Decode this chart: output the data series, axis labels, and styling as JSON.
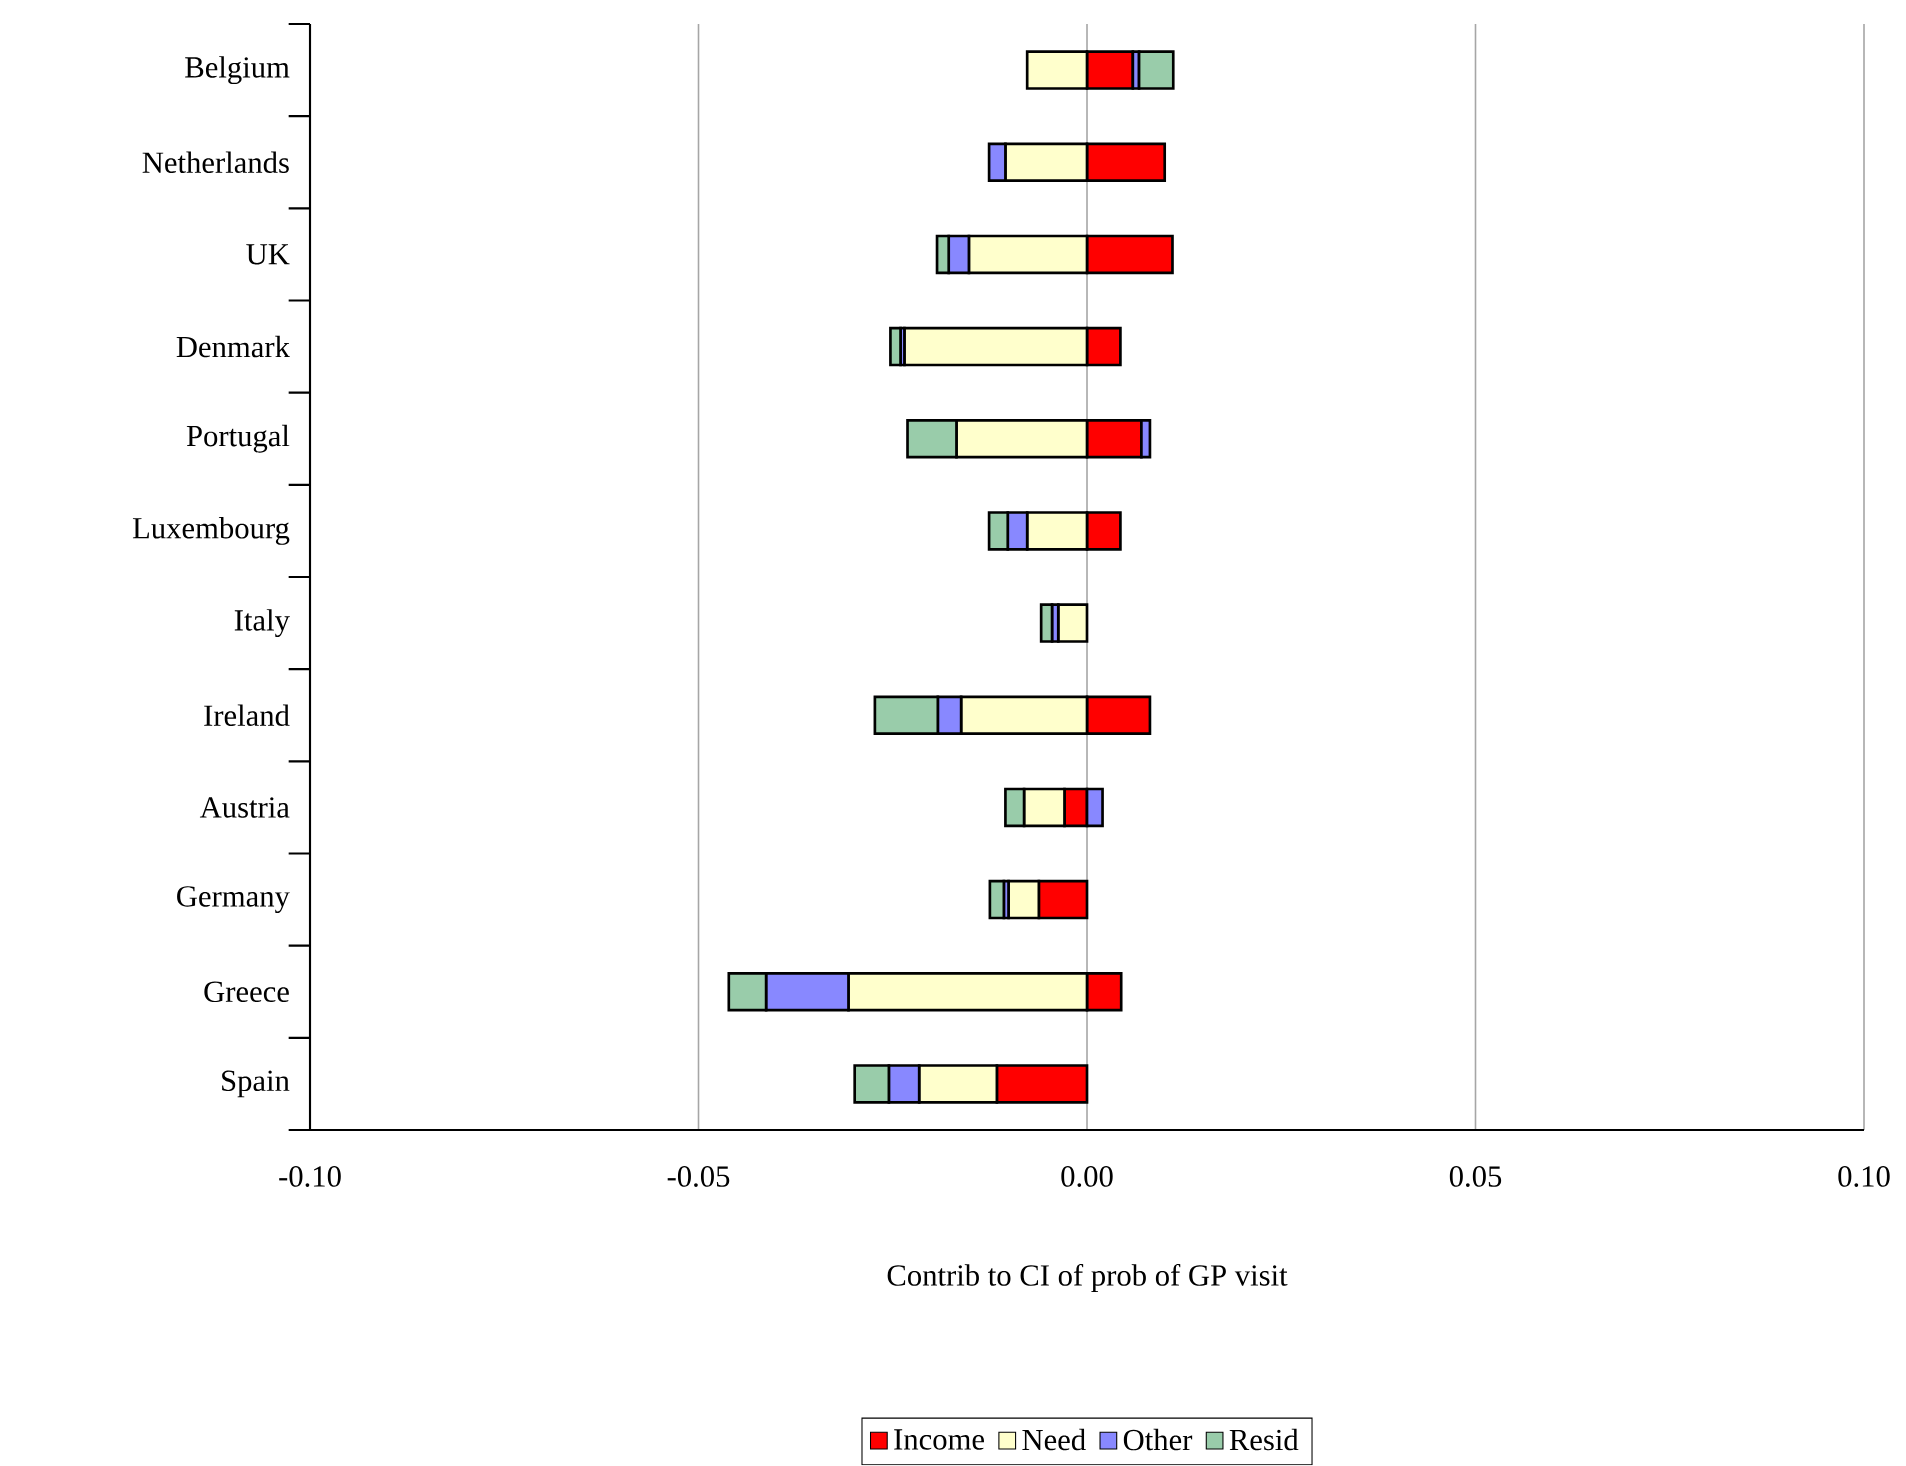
{
  "chart_data": {
    "type": "bar",
    "orientation": "horizontal",
    "stacked": true,
    "xlabel": "Contrib to CI of prob of GP visit",
    "categories": [
      "Belgium",
      "Netherlands",
      "UK",
      "Denmark",
      "Portugal",
      "Luxembourg",
      "Italy",
      "Ireland",
      "Austria",
      "Germany",
      "Greece",
      "Spain"
    ],
    "series": [
      {
        "name": "Income",
        "color": "#ff0000",
        "values": [
          0.0059,
          0.01,
          0.011,
          0.0043,
          0.007,
          0.0043,
          null,
          0.0081,
          -0.0029,
          -0.0062,
          0.0044,
          -0.0116
        ]
      },
      {
        "name": "Need",
        "color": "#ffffcc",
        "values": [
          -0.0077,
          -0.0105,
          -0.0152,
          -0.0235,
          -0.0168,
          -0.0077,
          -0.0037,
          -0.0162,
          -0.0052,
          -0.0039,
          -0.0307,
          -0.01
        ]
      },
      {
        "name": "Other",
        "color": "#8888ff",
        "values": [
          0.0008,
          -0.0021,
          -0.0026,
          -0.0005,
          0.0011,
          -0.0025,
          -0.0008,
          -0.003,
          0.002,
          -0.0006,
          -0.0106,
          -0.0039
        ]
      },
      {
        "name": "Resid",
        "color": "#99ccaa",
        "values": [
          0.0044,
          null,
          -0.0015,
          -0.0013,
          -0.0063,
          -0.0024,
          -0.0014,
          -0.0081,
          -0.0024,
          -0.0018,
          -0.0048,
          -0.0044
        ]
      }
    ],
    "xlim": [
      -0.1,
      0.1
    ],
    "xticks": [
      {
        "value": -0.1,
        "label": "-0.10"
      },
      {
        "value": -0.05,
        "label": "-0.05"
      },
      {
        "value": 0.0,
        "label": "0.00"
      },
      {
        "value": 0.05,
        "label": "0.05"
      },
      {
        "value": 0.1,
        "label": "0.10"
      }
    ],
    "grid": "x",
    "legend": "bottom"
  }
}
